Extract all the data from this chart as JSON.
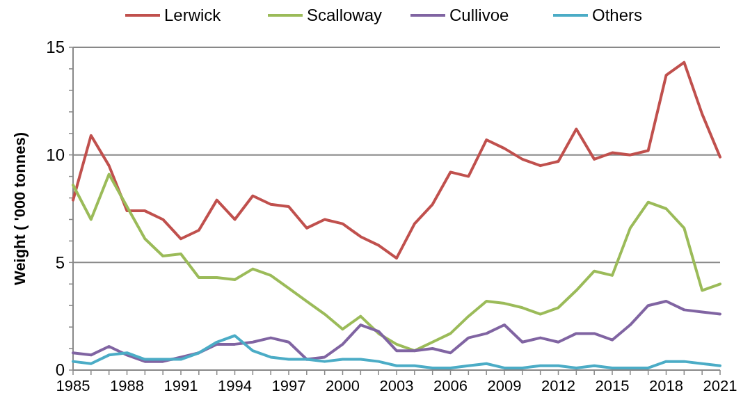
{
  "chart_data": {
    "type": "line",
    "ylabel": "Weight ( '000 tonnes)",
    "x": [
      1985,
      1986,
      1987,
      1988,
      1989,
      1990,
      1991,
      1992,
      1993,
      1994,
      1995,
      1996,
      1997,
      1998,
      1999,
      2000,
      2001,
      2002,
      2003,
      2004,
      2005,
      2006,
      2007,
      2008,
      2009,
      2010,
      2011,
      2012,
      2013,
      2014,
      2015,
      2016,
      2017,
      2018,
      2019,
      2020,
      2021
    ],
    "xlim": [
      1985,
      2021
    ],
    "xticks": [
      1985,
      1988,
      1991,
      1994,
      1997,
      2000,
      2003,
      2006,
      2009,
      2012,
      2015,
      2018,
      2021
    ],
    "ylim": [
      0,
      15
    ],
    "yticks": [
      0,
      5,
      10,
      15
    ],
    "grid": "y",
    "legend": "top",
    "marker": "none",
    "series": [
      {
        "name": "Lerwick",
        "color": "#c0504d",
        "values": [
          7.9,
          10.9,
          9.5,
          7.4,
          7.4,
          7.0,
          6.1,
          6.5,
          7.9,
          7.0,
          8.1,
          7.7,
          7.6,
          6.6,
          7.0,
          6.8,
          6.2,
          5.8,
          5.2,
          6.8,
          7.7,
          9.2,
          9.0,
          10.7,
          10.3,
          9.8,
          9.5,
          9.7,
          11.2,
          9.8,
          10.1,
          10.0,
          10.2,
          13.7,
          14.3,
          11.9,
          9.9
        ]
      },
      {
        "name": "Scalloway",
        "color": "#9bbb59",
        "values": [
          8.6,
          7.0,
          9.1,
          7.6,
          6.1,
          5.3,
          5.4,
          4.3,
          4.3,
          4.2,
          4.7,
          4.4,
          3.8,
          3.2,
          2.6,
          1.9,
          2.5,
          1.7,
          1.2,
          0.9,
          1.3,
          1.7,
          2.5,
          3.2,
          3.1,
          2.9,
          2.6,
          2.9,
          3.7,
          4.6,
          4.4,
          6.6,
          7.8,
          7.5,
          6.6,
          3.7,
          4.0
        ]
      },
      {
        "name": "Cullivoe",
        "color": "#8064a2",
        "values": [
          0.8,
          0.7,
          1.1,
          0.7,
          0.4,
          0.4,
          0.6,
          0.8,
          1.2,
          1.2,
          1.3,
          1.5,
          1.3,
          0.5,
          0.6,
          1.2,
          2.1,
          1.8,
          0.9,
          0.9,
          1.0,
          0.8,
          1.5,
          1.7,
          2.1,
          1.3,
          1.5,
          1.3,
          1.7,
          1.7,
          1.4,
          2.1,
          3.0,
          3.2,
          2.8,
          2.7,
          2.6
        ]
      },
      {
        "name": "Others",
        "color": "#4bacc6",
        "values": [
          0.4,
          0.3,
          0.7,
          0.8,
          0.5,
          0.5,
          0.5,
          0.8,
          1.3,
          1.6,
          0.9,
          0.6,
          0.5,
          0.5,
          0.4,
          0.5,
          0.5,
          0.4,
          0.2,
          0.2,
          0.1,
          0.1,
          0.2,
          0.3,
          0.1,
          0.1,
          0.2,
          0.2,
          0.1,
          0.2,
          0.1,
          0.1,
          0.1,
          0.4,
          0.4,
          0.3,
          0.2
        ]
      }
    ]
  }
}
